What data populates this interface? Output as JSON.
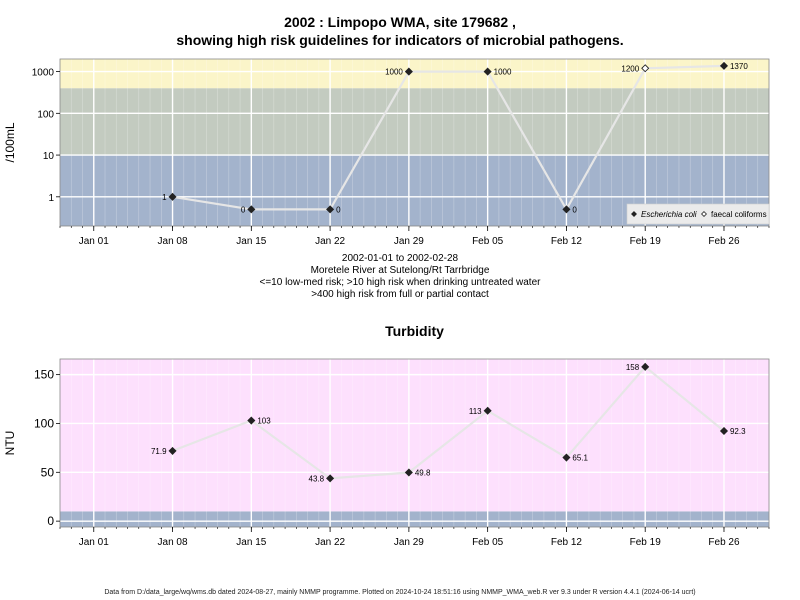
{
  "top_title_line1": "2002 : Limpopo WMA, site 179682 ,",
  "top_title_line2": "showing high risk guidelines for indicators of microbial pathogens.",
  "subtitle": {
    "line1": "2002-01-01 to 2002-02-28",
    "line2": "Moretele River at Sutelong/Rt Tarrbridge",
    "line3": "<=10 low-med risk; >10 high risk when drinking untreated water",
    "line4": ">400 high risk from full or partial contact"
  },
  "footer": "Data from D:/data_large/wq/wms.db dated 2024-08-27, mainly NMMP programme. Plotted on 2024-10-24 18:51:16 using NMMP_WMA_web.R ver 9.3 under R version 4.4.1 (2024-06-14 ucrt)",
  "colors": {
    "band_low": "#a3b3cc",
    "band_mid": "#c3cbc0",
    "band_high": "#fbf5c9",
    "turb_bg": "#fde0fd",
    "turb_low": "#a3b3cc",
    "line": "#e6e6e6",
    "grid": "#ffffff",
    "point": "#222222"
  },
  "chart_data": [
    {
      "type": "line",
      "title": "",
      "ylabel": "/100mL",
      "y_scale": "log",
      "y_ticks": [
        1,
        10,
        100,
        1000
      ],
      "y_tick_labels": [
        "1",
        "10",
        "100",
        "1000"
      ],
      "ylim": [
        0.2,
        2000
      ],
      "x_ticks": [
        "2002-01-01",
        "2002-01-08",
        "2002-01-15",
        "2002-01-22",
        "2002-01-29",
        "2002-02-05",
        "2002-02-12",
        "2002-02-19",
        "2002-02-26"
      ],
      "x_tick_labels": [
        "Jan 01",
        "Jan 08",
        "Jan 15",
        "Jan 22",
        "Jan 29",
        "Feb 05",
        "Feb 12",
        "Feb 19",
        "Feb 26"
      ],
      "xlim": [
        "2001-12-29",
        "2002-03-02"
      ],
      "bands": [
        {
          "from": 0.2,
          "to": 10,
          "color": "#a3b3cc"
        },
        {
          "from": 10,
          "to": 400,
          "color": "#c3cbc0"
        },
        {
          "from": 400,
          "to": 2000,
          "color": "#fbf5c9"
        }
      ],
      "legend_position": "bottom-right",
      "legend": [
        {
          "label": "Escherichia coli",
          "marker": "filled-diamond"
        },
        {
          "label": "faecal coliforms",
          "marker": "open-diamond"
        }
      ],
      "series": [
        {
          "name": "Escherichia coli",
          "marker": "filled-diamond",
          "points": [
            {
              "x": "2002-01-08",
              "y": 1,
              "label": "1",
              "label_side": "left"
            },
            {
              "x": "2002-01-15",
              "y": 0.5,
              "label": "0",
              "label_side": "left"
            },
            {
              "x": "2002-01-22",
              "y": 0.5,
              "label": "0",
              "label_side": "right"
            },
            {
              "x": "2002-01-29",
              "y": 1000,
              "label": "1000",
              "label_side": "left"
            },
            {
              "x": "2002-02-05",
              "y": 1000,
              "label": "1000",
              "label_side": "right"
            },
            {
              "x": "2002-02-12",
              "y": 0.5,
              "label": "0",
              "label_side": "right"
            },
            {
              "x": "2002-02-26",
              "y": 1370,
              "label": "1370",
              "label_side": "right"
            }
          ]
        },
        {
          "name": "faecal coliforms",
          "marker": "open-diamond",
          "points": [
            {
              "x": "2002-02-19",
              "y": 1200,
              "label": "1200",
              "label_side": "left"
            }
          ]
        }
      ],
      "line_order": [
        "2002-01-08",
        "2002-01-15",
        "2002-01-22",
        "2002-01-29",
        "2002-02-05",
        "2002-02-12",
        "2002-02-19",
        "2002-02-26"
      ],
      "line_values": [
        1,
        0.5,
        0.5,
        1000,
        1000,
        0.5,
        1200,
        1370
      ]
    },
    {
      "type": "line",
      "title": "Turbidity",
      "ylabel": "NTU",
      "y_scale": "linear",
      "y_ticks": [
        0,
        50,
        100,
        150
      ],
      "y_tick_labels": [
        "0",
        "50",
        "100",
        "150"
      ],
      "ylim": [
        -6,
        166
      ],
      "x_ticks": [
        "2002-01-01",
        "2002-01-08",
        "2002-01-15",
        "2002-01-22",
        "2002-01-29",
        "2002-02-05",
        "2002-02-12",
        "2002-02-19",
        "2002-02-26"
      ],
      "x_tick_labels": [
        "Jan 01",
        "Jan 08",
        "Jan 15",
        "Jan 22",
        "Jan 29",
        "Feb 05",
        "Feb 12",
        "Feb 19",
        "Feb 26"
      ],
      "xlim": [
        "2001-12-29",
        "2002-03-02"
      ],
      "bands": [
        {
          "from": -6,
          "to": 10,
          "color": "#a3b3cc"
        },
        {
          "from": 10,
          "to": 166,
          "color": "#fde0fd"
        }
      ],
      "series": [
        {
          "name": "",
          "marker": "filled-diamond",
          "points": [
            {
              "x": "2002-01-08",
              "y": 71.9,
              "label": "71.9",
              "label_side": "left"
            },
            {
              "x": "2002-01-15",
              "y": 103,
              "label": "103",
              "label_side": "right"
            },
            {
              "x": "2002-01-22",
              "y": 43.8,
              "label": "43.8",
              "label_side": "left"
            },
            {
              "x": "2002-01-29",
              "y": 49.8,
              "label": "49.8",
              "label_side": "right"
            },
            {
              "x": "2002-02-05",
              "y": 113,
              "label": "113",
              "label_side": "left"
            },
            {
              "x": "2002-02-12",
              "y": 65.1,
              "label": "65.1",
              "label_side": "right"
            },
            {
              "x": "2002-02-19",
              "y": 158,
              "label": "158",
              "label_side": "left"
            },
            {
              "x": "2002-02-26",
              "y": 92.3,
              "label": "92.3",
              "label_side": "right"
            }
          ]
        }
      ]
    }
  ]
}
